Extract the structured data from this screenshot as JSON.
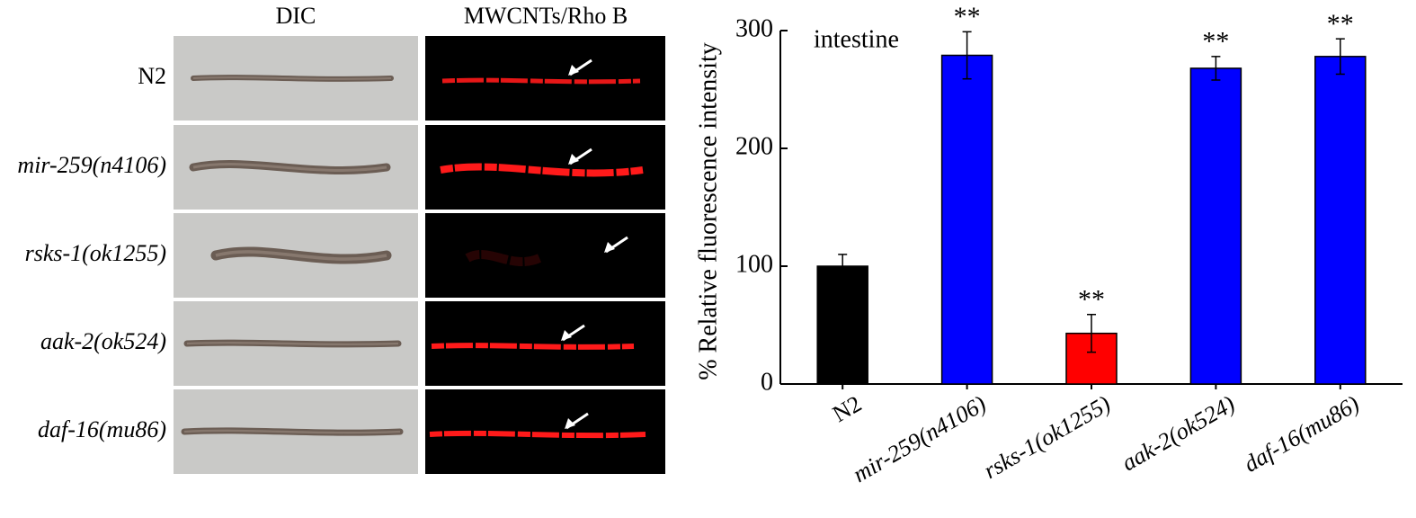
{
  "panel": {
    "columns": [
      "DIC",
      "MWCNTs/Rho B"
    ],
    "rows": [
      "N2",
      "mir-259(n4106)",
      "rsks-1(ok1255)",
      "aak-2(ok524)",
      "daf-16(mu86)"
    ]
  },
  "chart_data": {
    "type": "bar",
    "annotation": "intestine",
    "ylabel": "% Relative fluorescence intensity",
    "categories": [
      "N2",
      "mir-259(n4106)",
      "rsks-1(ok1255)",
      "aak-2(ok524)",
      "daf-16(mu86)"
    ],
    "values": [
      100,
      279,
      43,
      268,
      278
    ],
    "errors": [
      10,
      20,
      16,
      10,
      15
    ],
    "significance": [
      null,
      "**",
      "**",
      "**",
      "**"
    ],
    "colors": [
      "#000000",
      "#0000ff",
      "#ff0000",
      "#0000ff",
      "#0000ff"
    ],
    "ylim": [
      0,
      300
    ],
    "yticks": [
      0,
      100,
      200,
      300
    ],
    "grid": false
  }
}
